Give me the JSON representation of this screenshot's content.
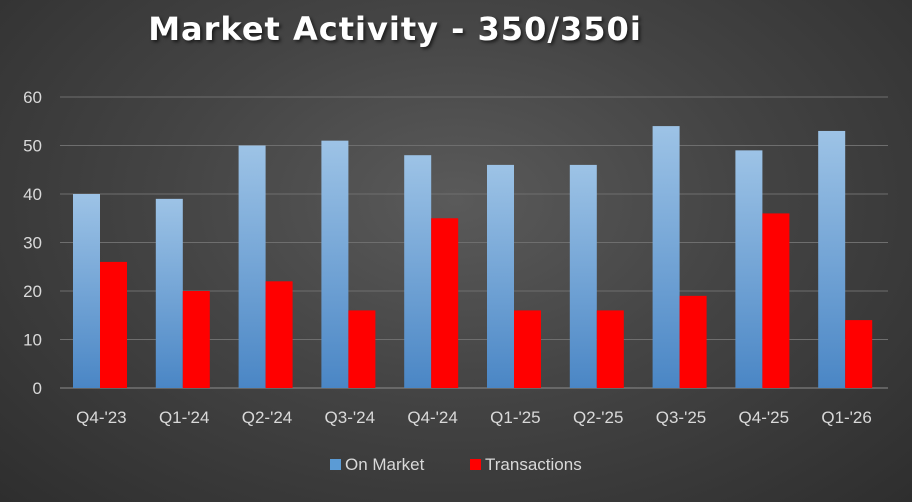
{
  "chart_data": {
    "type": "bar",
    "title": "Market Activity - 350/350i",
    "categories": [
      "Q4-'23",
      "Q1-'24",
      "Q2-'24",
      "Q3-'24",
      "Q4-'24",
      "Q1-'25",
      "Q2-'25",
      "Q3-'25",
      "Q4-'25",
      "Q1-'26"
    ],
    "series": [
      {
        "name": "On Market",
        "values": [
          40,
          39,
          50,
          51,
          48,
          46,
          46,
          54,
          49,
          53
        ],
        "color": "#5b9bd5"
      },
      {
        "name": "Transactions",
        "values": [
          26,
          20,
          22,
          16,
          35,
          16,
          16,
          19,
          36,
          14
        ],
        "color": "#ff0000"
      }
    ],
    "xlabel": "",
    "ylabel": "",
    "ylim": [
      0,
      60
    ],
    "yticks": [
      0,
      10,
      20,
      30,
      40,
      50,
      60
    ],
    "grid": true,
    "legend_position": "bottom"
  }
}
